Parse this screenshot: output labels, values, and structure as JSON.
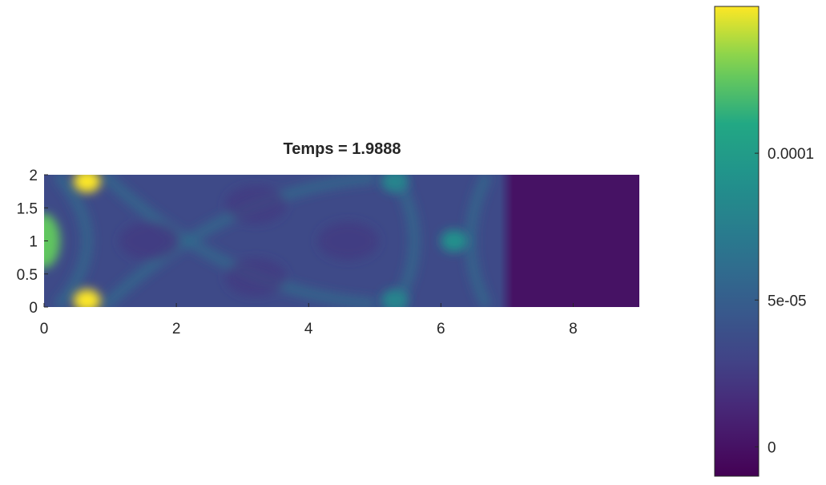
{
  "chart_data": {
    "type": "heatmap",
    "title": "Temps = 1.9888",
    "xlabel": "",
    "ylabel": "",
    "xlim": [
      0,
      9
    ],
    "ylim": [
      0,
      2
    ],
    "x_ticks": [
      "0",
      "2",
      "4",
      "6",
      "8"
    ],
    "y_ticks": [
      "0",
      "0.5",
      "1",
      "1.5",
      "2"
    ],
    "colormap": "viridis",
    "colorbar": {
      "range": [
        -1e-05,
        0.00015
      ],
      "ticks": [
        {
          "value": 0,
          "label": "0"
        },
        {
          "value": 5e-05,
          "label": "5e-05"
        },
        {
          "value": 0.0001,
          "label": "0.0001"
        }
      ]
    },
    "hotspots": [
      {
        "x": 0.0,
        "y": 1.0,
        "value": 0.000125
      },
      {
        "x": 0.65,
        "y": 1.9,
        "value": 0.00015
      },
      {
        "x": 0.65,
        "y": 0.1,
        "value": 0.00015
      },
      {
        "x": 5.3,
        "y": 1.9,
        "value": 8e-05
      },
      {
        "x": 5.3,
        "y": 0.1,
        "value": 8e-05
      },
      {
        "x": 6.2,
        "y": 1.0,
        "value": 9e-05
      }
    ],
    "field_summary": {
      "wave_region_x": [
        0,
        7
      ],
      "wave_region_background": 3.5e-05,
      "quiet_region_x": [
        7,
        9
      ],
      "quiet_region_value": 0.0
    }
  }
}
